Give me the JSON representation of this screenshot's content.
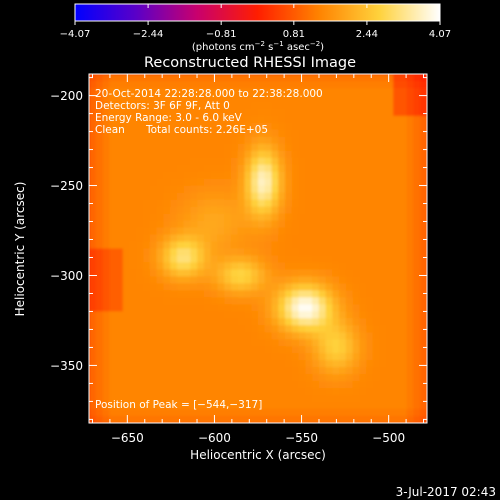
{
  "chart_data": {
    "type": "heatmap",
    "title": "Reconstructed RHESSI Image",
    "xlabel": "Heliocentric X (arcsec)",
    "ylabel": "Heliocentric Y (arcsec)",
    "xlim": [
      -672,
      -478
    ],
    "ylim": [
      -382,
      -188
    ],
    "x_ticks": [
      -650,
      -600,
      -550,
      -500
    ],
    "x_tick_labels": [
      "−650",
      "−600",
      "−550",
      "−500"
    ],
    "y_ticks": [
      -200,
      -250,
      -300,
      -350
    ],
    "y_tick_labels": [
      "−200",
      "−250",
      "−300",
      "−350"
    ],
    "grid": false,
    "colorbar": {
      "min": -4.07,
      "max": 4.07,
      "ticks": [
        -4.07,
        -2.44,
        -0.81,
        0.81,
        2.44,
        4.07
      ],
      "tick_labels": [
        "−4.07",
        "−2.44",
        "−0.81",
        "0.81",
        "2.44",
        "4.07"
      ],
      "unit": "photons cm⁻² s⁻¹ asec⁻²",
      "label_prefix": "(photons cm",
      "label_sup1": "−2",
      "label_mid1": " s",
      "label_sup2": "−1",
      "label_mid2": " asec",
      "label_sup3": "−2",
      "label_suffix": ")"
    },
    "sources": [
      {
        "x": -572,
        "y": -248,
        "level": 0.92,
        "sx": 7,
        "sy": 13
      },
      {
        "x": -618,
        "y": -290,
        "level": 0.8,
        "sx": 9,
        "sy": 8
      },
      {
        "x": -548,
        "y": -318,
        "level": 1.0,
        "sx": 11,
        "sy": 9
      },
      {
        "x": -585,
        "y": -300,
        "level": 0.72,
        "sx": 10,
        "sy": 7
      },
      {
        "x": -530,
        "y": -340,
        "level": 0.7,
        "sx": 9,
        "sy": 10
      },
      {
        "x": -600,
        "y": -270,
        "level": 0.55,
        "sx": 14,
        "sy": 12
      }
    ],
    "annotations": {
      "time_range": "20-Oct-2014 22:28:28.000 to 22:38:28.000",
      "detectors": "Detectors: 3F 6F 9F, Att 0",
      "energy_range": "Energy Range: 3.0 - 6.0 keV",
      "method": "Clean",
      "total_counts": "Total counts: 2.26E+05",
      "peak": "Position of Peak = [−544,−317]"
    },
    "colormap": [
      "#0000ff",
      "#5a00c8",
      "#c8006e",
      "#ff1e00",
      "#ff8200",
      "#ffd23c",
      "#ffffff"
    ]
  },
  "footer": {
    "date": "3-Jul-2017 02:43"
  }
}
